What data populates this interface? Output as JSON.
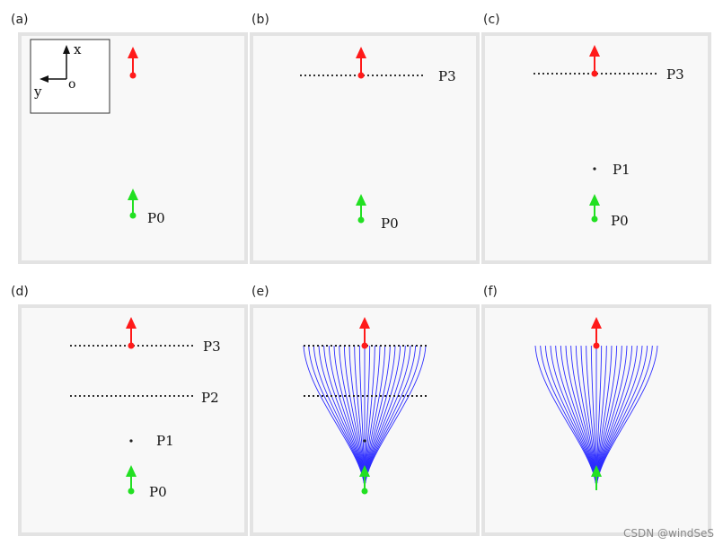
{
  "panels": [
    {
      "id": "a",
      "label": "(a)",
      "axes_box": {
        "x_label": "x",
        "y_label": "y",
        "origin_label": "o"
      },
      "points": [
        {
          "name": "P0",
          "label": "P0"
        }
      ],
      "lines": [],
      "curves": false
    },
    {
      "id": "b",
      "label": "(b)",
      "points": [
        {
          "name": "P0",
          "label": "P0"
        }
      ],
      "lines": [
        {
          "name": "P3",
          "label": "P3"
        }
      ],
      "curves": false
    },
    {
      "id": "c",
      "label": "(c)",
      "points": [
        {
          "name": "P1",
          "label": "P1"
        },
        {
          "name": "P0",
          "label": "P0"
        }
      ],
      "lines": [
        {
          "name": "P3",
          "label": "P3"
        }
      ],
      "curves": false
    },
    {
      "id": "d",
      "label": "(d)",
      "points": [
        {
          "name": "P1",
          "label": "P1"
        },
        {
          "name": "P0",
          "label": "P0"
        }
      ],
      "lines": [
        {
          "name": "P3",
          "label": "P3"
        },
        {
          "name": "P2",
          "label": "P2"
        }
      ],
      "curves": false
    },
    {
      "id": "e",
      "label": "(e)",
      "points": [],
      "lines": [],
      "curves": true,
      "show_control_dots": true
    },
    {
      "id": "f",
      "label": "(f)",
      "points": [],
      "lines": [],
      "curves": true,
      "show_control_dots": false
    }
  ],
  "colors": {
    "start_arrow": "#22e022",
    "end_arrow": "#ff1a1a",
    "curves": "#2b2bff",
    "panel_bg": "#f8f8f8",
    "panel_border": "#e3e3e3",
    "dots": "#333333"
  },
  "watermark": "CSDN @windSeS"
}
